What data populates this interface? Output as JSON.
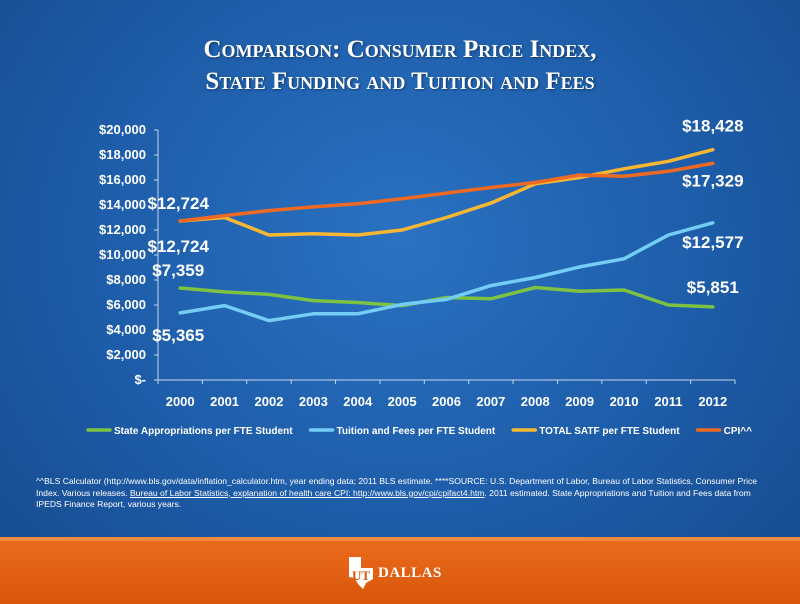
{
  "title": {
    "line1": "Comparison: Consumer Price Index,",
    "line2": "State Funding and Tuition and Fees"
  },
  "colors": {
    "state": "#7dc242",
    "tuition": "#74cdf5",
    "total": "#f7b733",
    "cpi": "#ee6a23",
    "text": "#ffffff"
  },
  "chart_data": {
    "type": "line",
    "x": [
      "2000",
      "2001",
      "2002",
      "2003",
      "2004",
      "2005",
      "2006",
      "2007",
      "2008",
      "2009",
      "2010",
      "2011",
      "2012"
    ],
    "ylim": [
      0,
      20000
    ],
    "yticks": [
      {
        "value": 0,
        "label": "$-"
      },
      {
        "value": 2000,
        "label": "$2,000"
      },
      {
        "value": 4000,
        "label": "$4,000"
      },
      {
        "value": 6000,
        "label": "$6,000"
      },
      {
        "value": 8000,
        "label": "$8,000"
      },
      {
        "value": 10000,
        "label": "$10,000"
      },
      {
        "value": 12000,
        "label": "$12,000"
      },
      {
        "value": 14000,
        "label": "$14,000"
      },
      {
        "value": 16000,
        "label": "$16,000"
      },
      {
        "value": 18000,
        "label": "$18,000"
      },
      {
        "value": 20000,
        "label": "$20,000"
      }
    ],
    "legend_position": "bottom",
    "series": [
      {
        "key": "state",
        "name": "State Appropriations per FTE Student",
        "color": "#7dc242",
        "values": [
          7359,
          7050,
          6850,
          6350,
          6200,
          5950,
          6600,
          6500,
          7400,
          7100,
          7200,
          6000,
          5851
        ]
      },
      {
        "key": "tuition",
        "name": "Tuition and Fees per FTE Student",
        "color": "#74cdf5",
        "values": [
          5365,
          5950,
          4750,
          5300,
          5300,
          6050,
          6450,
          7550,
          8200,
          9050,
          9700,
          11600,
          12577
        ]
      },
      {
        "key": "total",
        "name": "TOTAL SATF per FTE Student",
        "color": "#f7b733",
        "values": [
          12724,
          13000,
          11600,
          11700,
          11600,
          12000,
          13000,
          14150,
          15700,
          16200,
          16900,
          17500,
          18428
        ]
      },
      {
        "key": "cpi",
        "name": "CPI^^",
        "color": "#ee6a23",
        "values": [
          12724,
          13150,
          13550,
          13850,
          14100,
          14500,
          14950,
          15400,
          15800,
          16400,
          16300,
          16700,
          17329
        ]
      }
    ],
    "data_labels": [
      {
        "text": "$12,724",
        "series": "total",
        "index": 0
      },
      {
        "text": "$12,724",
        "series": "cpi",
        "index": 0
      },
      {
        "text": "$7,359",
        "series": "state",
        "index": 0
      },
      {
        "text": "$5,365",
        "series": "tuition",
        "index": 0
      },
      {
        "text": "$18,428",
        "series": "total",
        "index": 12
      },
      {
        "text": "$17,329",
        "series": "cpi",
        "index": 12
      },
      {
        "text": "$12,577",
        "series": "tuition",
        "index": 12
      },
      {
        "text": "$5,851",
        "series": "state",
        "index": 12
      }
    ]
  },
  "footnote": {
    "part1": "^^BLS Calculator (http://www.bls.gov/data/inflation_calculator.htm, year ending data; 2011 BLS estimate. ****SOURCE: U.S. Department of Labor, Bureau of Labor Statistics, Consumer Price Index. Various releases. ",
    "link": "Bureau of Labor Statistics, explanation of health care CPI: http://www.bls.gov/cpi/cpifact4.htm",
    "part2": ". 2011 estimated. State Appropriations and Tuition and Fees data from IPEDS Finance Report, various years."
  },
  "logo": {
    "text": "DALLAS",
    "monogram": "UT"
  }
}
